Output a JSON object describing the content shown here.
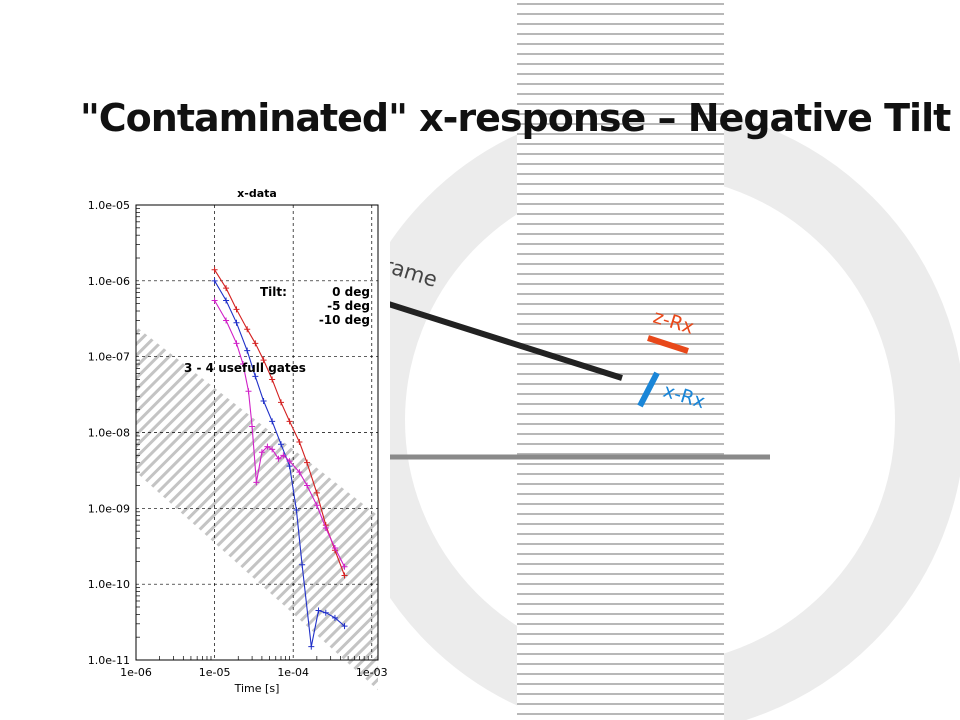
{
  "slide": {
    "title": "\"Contaminated\" x-response – Negative Tilt"
  },
  "diagram": {
    "frame_label": "Frame",
    "z_rx_label": "z-Rx",
    "x_rx_label": "x-Rx",
    "colors": {
      "frame": "#222222",
      "z_rx": "#e8481a",
      "x_rx": "#1a86d8",
      "ground": "#8a8a8a",
      "stripes": "#b8b8b8"
    }
  },
  "chart_data": {
    "type": "line",
    "title": "x-data",
    "xlabel": "Time [s]",
    "ylabel": "",
    "x_scale": "log",
    "y_scale": "log",
    "xlim": [
      1e-06,
      0.0012
    ],
    "ylim": [
      1e-11,
      1e-05
    ],
    "x_ticks": [
      "1e-06",
      "1e-05",
      "1e-04",
      "1e-03"
    ],
    "y_ticks": [
      "1.0e-05",
      "1.0e-06",
      "1.0e-07",
      "1.0e-08",
      "1.0e-09",
      "1.0e-10",
      "1.0e-11"
    ],
    "grid": true,
    "legend_title": "Tilt:",
    "annotation": "3 - 4 usefull gates",
    "series": [
      {
        "name": "0 deg",
        "color": "#d42020",
        "x": [
          1e-05,
          1.4e-05,
          1.9e-05,
          2.6e-05,
          3.3e-05,
          4.2e-05,
          5.4e-05,
          7e-05,
          9e-05,
          0.00012,
          0.00015,
          0.0002,
          0.00026,
          0.00034,
          0.00045
        ],
        "y": [
          1.4e-06,
          8e-07,
          4.2e-07,
          2.3e-07,
          1.5e-07,
          9e-08,
          5e-08,
          2.5e-08,
          1.4e-08,
          7.5e-09,
          4e-09,
          1.6e-09,
          6e-10,
          2.8e-10,
          1.3e-10
        ]
      },
      {
        "name": "-5 deg",
        "color": "#2030c8",
        "x": [
          1e-05,
          1.4e-05,
          1.9e-05,
          2.6e-05,
          3.3e-05,
          4.2e-05,
          5.4e-05,
          7e-05,
          9e-05,
          0.00011,
          0.00013,
          0.00017,
          0.00021,
          0.00026,
          0.00034,
          0.00045
        ],
        "y": [
          1e-06,
          5.5e-07,
          2.8e-07,
          1.2e-07,
          5.5e-08,
          2.6e-08,
          1.4e-08,
          7e-09,
          3.6e-09,
          9.5e-10,
          1.8e-10,
          1.5e-11,
          4.5e-11,
          4.2e-11,
          3.6e-11,
          2.8e-11
        ]
      },
      {
        "name": "-10 deg",
        "color": "#d020c8",
        "x": [
          1e-05,
          1.4e-05,
          1.9e-05,
          2.3e-05,
          2.7e-05,
          3e-05,
          3.4e-05,
          4e-05,
          4.7e-05,
          5.4e-05,
          6.5e-05,
          7.5e-05,
          9e-05,
          0.00012,
          0.00015,
          0.0002,
          0.00026,
          0.00034,
          0.00045
        ],
        "y": [
          5.5e-07,
          3e-07,
          1.5e-07,
          8e-08,
          3.5e-08,
          1.2e-08,
          2.2e-09,
          5.5e-09,
          6.5e-09,
          6e-09,
          4.5e-09,
          5e-09,
          4.2e-09,
          3e-09,
          2e-09,
          1.1e-09,
          5.5e-10,
          3e-10,
          1.7e-10
        ]
      }
    ]
  }
}
